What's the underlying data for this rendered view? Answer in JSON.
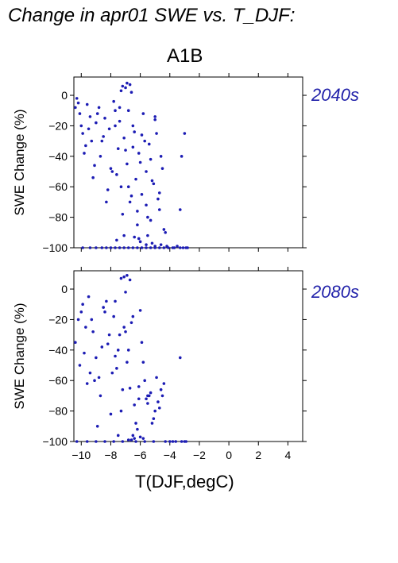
{
  "figure": {
    "title": "Change in apr01 SWE vs. T_DJF:",
    "scenario": "A1B",
    "xlabel": "T(DJF,degC)"
  },
  "colors": {
    "points": "#1c1cb4",
    "period_label": "#2222aa",
    "axes": "#000000"
  },
  "chart_data": [
    {
      "type": "scatter",
      "title": "",
      "panel_label": "2040s",
      "xlabel": "T(DJF,degC)",
      "ylabel": "SWE Change (%)",
      "xlim": [
        -10.5,
        5
      ],
      "ylim": [
        -100,
        12
      ],
      "xticks": [
        -10,
        -8,
        -6,
        -4,
        -2,
        0,
        2,
        4
      ],
      "yticks": [
        0,
        -20,
        -40,
        -60,
        -80,
        -100
      ],
      "grid": false,
      "x": [
        -10.4,
        -10.1,
        -9.9,
        -9.6,
        -9.3,
        -9.0,
        -8.7,
        -8.4,
        -8.1,
        -7.9,
        -7.7,
        -7.5,
        -7.3,
        -7.1,
        -6.9,
        -6.7,
        -6.5,
        -6.3,
        -6.1,
        -5.9,
        -5.7,
        -5.5,
        -5.3,
        -5.1,
        -4.9,
        -4.7,
        -4.5,
        -4.3,
        -10.3,
        -10.0,
        -9.7,
        -9.4,
        -9.1,
        -8.8,
        -8.5,
        -8.2,
        -7.8,
        -7.6,
        -7.4,
        -7.2,
        -7.0,
        -6.8,
        -6.6,
        -6.4,
        -6.2,
        -6.0,
        -5.8,
        -5.6,
        -5.4,
        -5.2,
        -5.0,
        -4.8,
        -4.6,
        -4.4,
        -10.2,
        -9.8,
        -9.5,
        -9.2,
        -8.9,
        -8.6,
        -8.3,
        -8.0,
        -7.7,
        -7.4,
        -7.1,
        -6.8,
        -6.5,
        -6.2,
        -5.9,
        -5.6,
        -5.3,
        -5.0,
        -4.7,
        -3.2,
        -3.0,
        -3.3,
        -7.0,
        -6.9,
        -7.2,
        -6.7,
        -7.3,
        -6.6,
        -6.0,
        -5.6,
        -5.2,
        -5.0,
        -4.6,
        -4.2,
        -3.8,
        -3.5,
        -3.1,
        -2.8,
        -9.9,
        -9.4,
        -9.0,
        -8.6,
        -8.3,
        -8.0,
        -7.7,
        -7.4,
        -7.1,
        -6.8,
        -6.5,
        -6.2,
        -5.9,
        -5.6,
        -5.3,
        -5.0,
        -4.7,
        -4.4,
        -4.1,
        -3.7,
        -3.3,
        -2.9,
        -6.1,
        -6.4,
        -7.6,
        -5.5
      ],
      "y": [
        -8,
        -12,
        -25,
        -6,
        -30,
        -18,
        -40,
        -15,
        -22,
        -50,
        -10,
        -35,
        -60,
        -28,
        -45,
        -70,
        -20,
        -55,
        -38,
        -65,
        -30,
        -80,
        -42,
        -58,
        -25,
        -75,
        -48,
        -90,
        -2,
        -20,
        -33,
        -14,
        -46,
        -8,
        -27,
        -62,
        -4,
        -52,
        -17,
        -78,
        -36,
        -10,
        -66,
        -24,
        -85,
        -44,
        -12,
        -72,
        -32,
        -56,
        -16,
        -68,
        -40,
        -88,
        -5,
        -38,
        -22,
        -54,
        -12,
        -30,
        -70,
        -48,
        -20,
        -8,
        -92,
        -60,
        -34,
        -76,
        -26,
        -50,
        -82,
        -14,
        -64,
        -40,
        -25,
        -75,
        5,
        8,
        6,
        7,
        3,
        2,
        -96,
        -98,
        -97,
        -99,
        -98,
        -99,
        -100,
        -99,
        -100,
        -100,
        -100,
        -100,
        -100,
        -100,
        -100,
        -100,
        -100,
        -100,
        -100,
        -100,
        -100,
        -100,
        -100,
        -100,
        -100,
        -100,
        -100,
        -100,
        -100,
        -100,
        -100,
        -100,
        -94,
        -93,
        -95,
        -92
      ]
    },
    {
      "type": "scatter",
      "title": "",
      "panel_label": "2080s",
      "xlabel": "T(DJF,degC)",
      "ylabel": "SWE Change (%)",
      "xlim": [
        -10.5,
        5
      ],
      "ylim": [
        -100,
        12
      ],
      "xticks": [
        -10,
        -8,
        -6,
        -4,
        -2,
        0,
        2,
        4
      ],
      "yticks": [
        0,
        -20,
        -40,
        -60,
        -80,
        -100
      ],
      "grid": false,
      "x": [
        -10.4,
        -10.1,
        -9.9,
        -9.6,
        -9.3,
        -9.0,
        -8.7,
        -8.4,
        -8.1,
        -7.9,
        -7.7,
        -7.5,
        -7.3,
        -7.1,
        -6.9,
        -6.7,
        -6.5,
        -6.3,
        -6.1,
        -5.9,
        -5.7,
        -5.5,
        -5.3,
        -5.1,
        -4.9,
        -4.7,
        -4.5,
        -3.3,
        -10.2,
        -9.8,
        -9.5,
        -9.2,
        -8.8,
        -8.5,
        -8.2,
        -7.8,
        -7.6,
        -7.2,
        -7.0,
        -6.8,
        -6.6,
        -6.4,
        -6.0,
        -5.8,
        -5.4,
        -5.0,
        -4.6,
        -7.1,
        -6.9,
        -7.3,
        -6.7,
        -9.7,
        -9.1,
        -8.6,
        -8.0,
        -7.4,
        -6.2,
        -5.6,
        -4.8,
        -10.0,
        -9.4,
        -8.9,
        -8.3,
        -7.7,
        -7.0,
        -6.5,
        -6.1,
        -5.5,
        -5.2,
        -4.4,
        -6.4,
        -6.8,
        -6.0,
        -5.8,
        -6.6,
        -7.5,
        -4.0,
        -3.6,
        -3.2,
        -2.9,
        -10.3,
        -9.6,
        -9.0,
        -8.4,
        -7.8,
        -7.2,
        -6.3,
        -5.7,
        -5.1,
        -4.3,
        -3.8,
        -3.0
      ],
      "y": [
        -35,
        -50,
        -10,
        -62,
        -20,
        -45,
        -70,
        -15,
        -30,
        -55,
        -8,
        -40,
        -80,
        -25,
        -48,
        -65,
        -18,
        -88,
        -72,
        -35,
        -60,
        -75,
        -68,
        -85,
        -58,
        -78,
        -70,
        -45,
        -20,
        -42,
        -5,
        -28,
        -58,
        -12,
        -36,
        -18,
        -52,
        -66,
        -2,
        -40,
        -22,
        -76,
        -14,
        -48,
        -70,
        -80,
        -66,
        8,
        9,
        7,
        6,
        -25,
        -60,
        -38,
        -82,
        -30,
        -92,
        -72,
        -74,
        -15,
        -55,
        -90,
        -8,
        -44,
        -28,
        -96,
        -64,
        -70,
        -88,
        -62,
        -98,
        -99,
        -97,
        -98,
        -99,
        -96,
        -100,
        -100,
        -100,
        -100,
        -100,
        -100,
        -100,
        -100,
        -100,
        -100,
        -100,
        -100,
        -100,
        -100,
        -100,
        -100
      ]
    }
  ]
}
